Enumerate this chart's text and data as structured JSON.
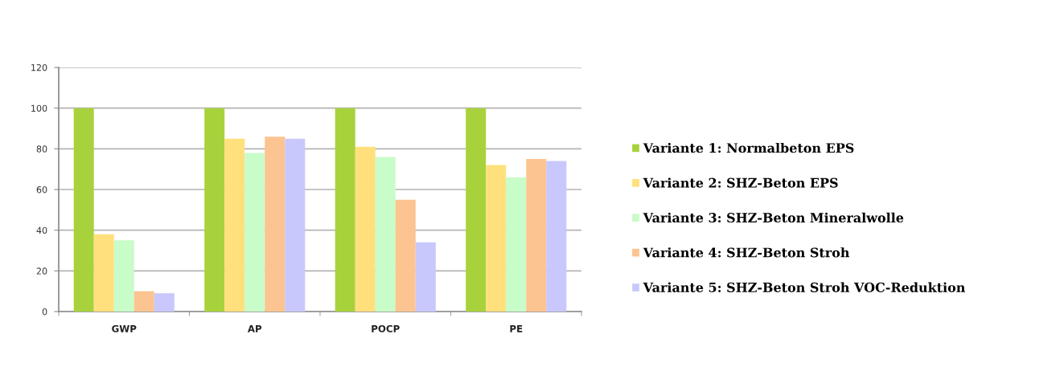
{
  "chart_data": {
    "type": "bar",
    "categories": [
      "GWP",
      "AP",
      "POCP",
      "PE"
    ],
    "series": [
      {
        "name": "Variante 1: Normalbeton EPS",
        "color": "#a8d23c",
        "values": [
          100,
          100,
          100,
          100
        ]
      },
      {
        "name": "Variante 2: SHZ-Beton EPS",
        "color": "#ffe07c",
        "values": [
          38,
          85,
          81,
          72
        ]
      },
      {
        "name": "Variante 3: SHZ-Beton Mineralwolle",
        "color": "#c8fcc8",
        "values": [
          35,
          78,
          76,
          66
        ]
      },
      {
        "name": "Variante 4: SHZ-Beton Stroh",
        "color": "#fcc490",
        "values": [
          10,
          86,
          55,
          75
        ]
      },
      {
        "name": "Variante 5: SHZ-Beton Stroh VOC-Reduktion",
        "color": "#c8c8fc",
        "values": [
          9,
          85,
          34,
          74
        ]
      }
    ],
    "ylim": [
      0,
      120
    ],
    "yticks": [
      0,
      20,
      40,
      60,
      80,
      100,
      120
    ],
    "grid": "y",
    "legend": "right"
  }
}
